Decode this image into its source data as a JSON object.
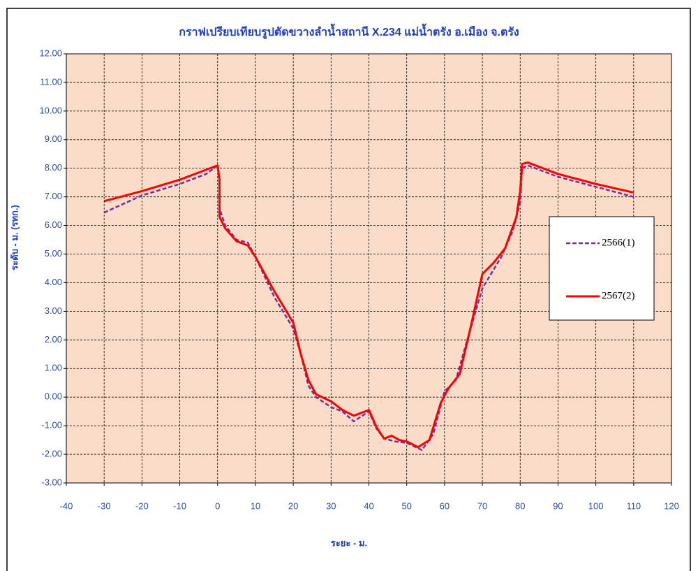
{
  "chart_data": {
    "type": "line",
    "title": "กราฟเปรียบเทียบรูปตัดขวางลำน้ำสถานี  X.234  แม่น้ำตรัง  อ.เมือง  จ.ตรัง",
    "x_label": "ระยะ - ม.",
    "y_label": "ระดับ - ม. (รทก.)",
    "xlim": [
      -40,
      120
    ],
    "xticks": [
      -40,
      -30,
      -20,
      -10,
      0,
      10,
      20,
      30,
      40,
      50,
      60,
      70,
      80,
      90,
      100,
      110,
      120
    ],
    "ylim": [
      -3,
      12
    ],
    "yticks": [
      {
        "value": -3,
        "label": "-3.00"
      },
      {
        "value": -2,
        "label": "-2.00"
      },
      {
        "value": -1,
        "label": "-1.00"
      },
      {
        "value": 0,
        "label": "0.00"
      },
      {
        "value": 1,
        "label": "1.00"
      },
      {
        "value": 2,
        "label": "2.00"
      },
      {
        "value": 3,
        "label": "3.00"
      },
      {
        "value": 4,
        "label": "4.00"
      },
      {
        "value": 5,
        "label": "5.00"
      },
      {
        "value": 6,
        "label": "6.00"
      },
      {
        "value": 7,
        "label": "7.00"
      },
      {
        "value": 8,
        "label": "8.00"
      },
      {
        "value": 9,
        "label": "9.00"
      },
      {
        "value": 10,
        "label": "10.00"
      },
      {
        "value": 11,
        "label": "11.00"
      },
      {
        "value": 12,
        "label": "12.00"
      }
    ],
    "grid": true,
    "legend": "right",
    "series": [
      {
        "name": "2566(1)",
        "color": "#7030a0",
        "dashed": true,
        "x": [
          -30,
          -20,
          -10,
          -3,
          0,
          0.5,
          0.5,
          2,
          5,
          8,
          10,
          15,
          20,
          22,
          24,
          26,
          30,
          33,
          36,
          40,
          42,
          44,
          47,
          50,
          54,
          57,
          60,
          63,
          66,
          70,
          75,
          78,
          80,
          80.5,
          82,
          90,
          100,
          110
        ],
        "values": [
          6.45,
          7.05,
          7.45,
          7.8,
          8.1,
          7.5,
          6.6,
          6.0,
          5.5,
          5.4,
          4.9,
          3.5,
          2.4,
          1.5,
          0.4,
          0.0,
          -0.35,
          -0.5,
          -0.85,
          -0.5,
          -1.1,
          -1.45,
          -1.55,
          -1.6,
          -1.85,
          -1.3,
          0.2,
          0.6,
          2.0,
          3.8,
          4.9,
          5.8,
          6.8,
          8.0,
          8.1,
          7.7,
          7.35,
          7.0
        ]
      },
      {
        "name": "2567(2)",
        "color": "#ff0000",
        "dashed": false,
        "x": [
          -30,
          -20,
          -10,
          -2,
          0,
          0.5,
          0.5,
          2,
          5,
          8,
          10,
          15,
          20,
          22,
          24,
          26,
          30,
          33,
          36,
          40,
          42,
          44,
          46,
          48,
          50,
          53,
          56,
          59,
          61,
          64,
          67,
          70,
          73,
          76,
          79,
          80,
          80.5,
          82,
          90,
          100,
          110
        ],
        "values": [
          6.85,
          7.2,
          7.6,
          8.0,
          8.1,
          7.6,
          6.3,
          5.9,
          5.45,
          5.3,
          4.9,
          3.7,
          2.6,
          1.5,
          0.6,
          0.1,
          -0.15,
          -0.45,
          -0.65,
          -0.45,
          -1.05,
          -1.45,
          -1.35,
          -1.5,
          -1.55,
          -1.75,
          -1.5,
          -0.2,
          0.3,
          0.8,
          2.5,
          4.3,
          4.7,
          5.2,
          6.3,
          7.2,
          8.15,
          8.2,
          7.8,
          7.45,
          7.15
        ]
      }
    ]
  }
}
